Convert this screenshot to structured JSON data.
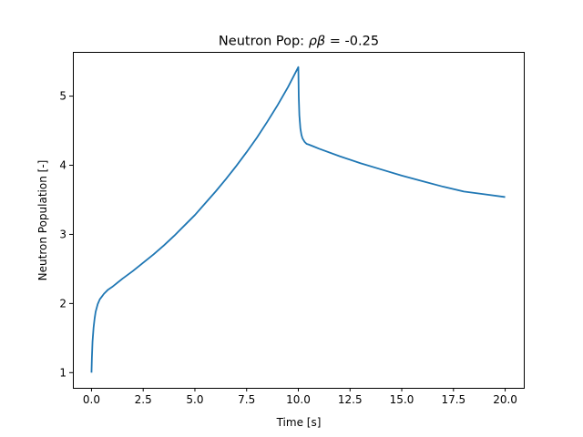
{
  "chart_data": {
    "type": "line",
    "title_prefix": "Neutron Pop: ",
    "title_rho": "ρ",
    "title_beta": "β",
    "title_suffix": " = -0.25",
    "xlabel": "Time [s]",
    "ylabel": "Neutron Population [-]",
    "xlim": [
      -0.9,
      20.9
    ],
    "ylim": [
      0.78,
      5.64
    ],
    "xticks": [
      0,
      2.5,
      5,
      7.5,
      10,
      12.5,
      15,
      17.5,
      20
    ],
    "xtick_labels": [
      "0.0",
      "2.5",
      "5.0",
      "7.5",
      "10.0",
      "12.5",
      "15.0",
      "17.5",
      "20.0"
    ],
    "yticks": [
      1,
      2,
      3,
      4,
      5
    ],
    "ytick_labels": [
      "1",
      "2",
      "3",
      "4",
      "5"
    ],
    "grid": false,
    "series": [
      {
        "color": "#1f77b4",
        "x": [
          0,
          0.02,
          0.05,
          0.1,
          0.15,
          0.2,
          0.3,
          0.4,
          0.5,
          0.6,
          0.8,
          1.0,
          1.5,
          2.0,
          2.5,
          3.0,
          3.5,
          4.0,
          4.5,
          5.0,
          5.5,
          6.0,
          6.5,
          7.0,
          7.5,
          8.0,
          8.5,
          9.0,
          9.5,
          10.0,
          10.02,
          10.05,
          10.1,
          10.15,
          10.2,
          10.3,
          10.4,
          10.5,
          10.75,
          11.0,
          12.0,
          13.0,
          14.0,
          15.0,
          16.0,
          17.0,
          18.0,
          19.0,
          20.0
        ],
        "y": [
          1.0,
          1.22,
          1.45,
          1.65,
          1.78,
          1.88,
          1.99,
          2.06,
          2.1,
          2.14,
          2.2,
          2.24,
          2.36,
          2.47,
          2.59,
          2.71,
          2.84,
          2.98,
          3.13,
          3.28,
          3.45,
          3.62,
          3.8,
          3.99,
          4.19,
          4.4,
          4.63,
          4.87,
          5.13,
          5.42,
          5.0,
          4.72,
          4.53,
          4.44,
          4.39,
          4.34,
          4.31,
          4.3,
          4.27,
          4.24,
          4.13,
          4.03,
          3.94,
          3.85,
          3.77,
          3.69,
          3.62,
          3.58,
          3.54
        ]
      }
    ]
  }
}
